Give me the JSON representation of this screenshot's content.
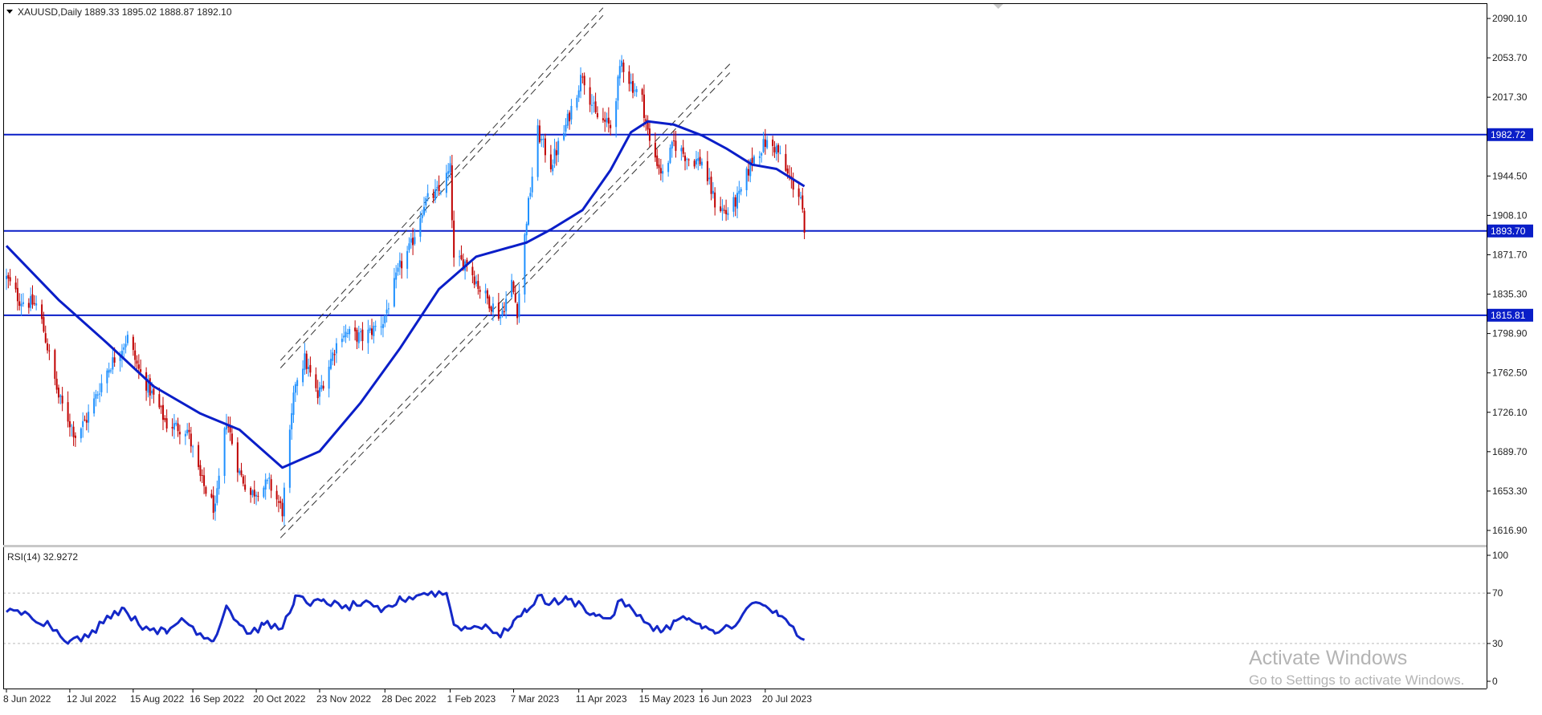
{
  "header": {
    "symbol": "XAUUSD,Daily",
    "ohlc": "1889.33 1895.02 1888.87 1892.10"
  },
  "rsi_header": "RSI(14) 32.9272",
  "watermark": {
    "title": "Activate Windows",
    "subtitle": "Go to Settings to activate Windows."
  },
  "colors": {
    "bull": "#1e90ff",
    "bear": "#c00000",
    "ma": "#0a1ec8",
    "level": "#0a1ec8",
    "rsi": "#1428c8",
    "label_bg": "#0a1ec8",
    "label_text": "#ffffff",
    "grid_dash": "#bbbbbb",
    "axis": "#000000"
  },
  "chart_data": [
    {
      "type": "candlestick",
      "title": "XAUUSD,Daily",
      "xlabel": "",
      "ylabel": "",
      "ylim": [
        1605,
        2100
      ],
      "x_range": [
        "2022-06-08",
        "2023-08-10"
      ],
      "x_ticks": [
        {
          "date": "2022-06-08",
          "label": "8 Jun 2022"
        },
        {
          "date": "2022-07-12",
          "label": "12 Jul 2022"
        },
        {
          "date": "2022-08-15",
          "label": "15 Aug 2022"
        },
        {
          "date": "2022-09-16",
          "label": "16 Sep 2022"
        },
        {
          "date": "2022-10-20",
          "label": "20 Oct 2022"
        },
        {
          "date": "2022-11-23",
          "label": "23 Nov 2022"
        },
        {
          "date": "2022-12-28",
          "label": "28 Dec 2022"
        },
        {
          "date": "2023-02-01",
          "label": "1 Feb 2023"
        },
        {
          "date": "2023-03-07",
          "label": "7 Mar 2023"
        },
        {
          "date": "2023-04-11",
          "label": "11 Apr 2023"
        },
        {
          "date": "2023-05-15",
          "label": "15 May 2023"
        },
        {
          "date": "2023-06-16",
          "label": "16 Jun 2023"
        },
        {
          "date": "2023-07-20",
          "label": "20 Jul 2023"
        }
      ],
      "y_ticks": [
        "2090.10",
        "2053.70",
        "2017.30",
        "1944.50",
        "1908.10",
        "1871.70",
        "1835.30",
        "1798.90",
        "1762.50",
        "1726.10",
        "1689.70",
        "1653.30",
        "1616.90"
      ],
      "horizontal_levels": [
        {
          "value": 1982.72,
          "label": "1982.72"
        },
        {
          "value": 1893.7,
          "label": "1893.70"
        },
        {
          "value": 1815.81,
          "label": "1815.81"
        }
      ],
      "close_path": [
        [
          "2022-06-08",
          1850
        ],
        [
          "2022-06-15",
          1830
        ],
        [
          "2022-06-25",
          1825
        ],
        [
          "2022-07-06",
          1740
        ],
        [
          "2022-07-15",
          1705
        ],
        [
          "2022-07-21",
          1720
        ],
        [
          "2022-08-01",
          1765
        ],
        [
          "2022-08-12",
          1795
        ],
        [
          "2022-08-18",
          1765
        ],
        [
          "2022-08-26",
          1740
        ],
        [
          "2022-09-02",
          1715
        ],
        [
          "2022-09-13",
          1710
        ],
        [
          "2022-09-20",
          1665
        ],
        [
          "2022-09-28",
          1635
        ],
        [
          "2022-10-04",
          1720
        ],
        [
          "2022-10-11",
          1670
        ],
        [
          "2022-10-17",
          1650
        ],
        [
          "2022-10-21",
          1655
        ],
        [
          "2022-10-27",
          1660
        ],
        [
          "2022-11-03",
          1635
        ],
        [
          "2022-11-10",
          1755
        ],
        [
          "2022-11-15",
          1775
        ],
        [
          "2022-11-22",
          1740
        ],
        [
          "2022-12-01",
          1785
        ],
        [
          "2022-12-05",
          1800
        ],
        [
          "2022-12-16",
          1795
        ],
        [
          "2022-12-27",
          1810
        ],
        [
          "2023-01-05",
          1860
        ],
        [
          "2023-01-11",
          1880
        ],
        [
          "2023-01-18",
          1920
        ],
        [
          "2023-01-26",
          1930
        ],
        [
          "2023-02-01",
          1950
        ],
        [
          "2023-02-03",
          1865
        ],
        [
          "2023-02-10",
          1865
        ],
        [
          "2023-02-17",
          1840
        ],
        [
          "2023-02-28",
          1815
        ],
        [
          "2023-03-06",
          1845
        ],
        [
          "2023-03-09",
          1820
        ],
        [
          "2023-03-14",
          1905
        ],
        [
          "2023-03-20",
          1985
        ],
        [
          "2023-03-27",
          1955
        ],
        [
          "2023-04-03",
          1985
        ],
        [
          "2023-04-13",
          2040
        ],
        [
          "2023-04-20",
          2000
        ],
        [
          "2023-04-28",
          1990
        ],
        [
          "2023-05-04",
          2050
        ],
        [
          "2023-05-09",
          2030
        ],
        [
          "2023-05-15",
          2015
        ],
        [
          "2023-05-19",
          1975
        ],
        [
          "2023-05-26",
          1945
        ],
        [
          "2023-06-01",
          1975
        ],
        [
          "2023-06-09",
          1960
        ],
        [
          "2023-06-16",
          1958
        ],
        [
          "2023-06-23",
          1920
        ],
        [
          "2023-06-29",
          1910
        ],
        [
          "2023-07-06",
          1925
        ],
        [
          "2023-07-13",
          1960
        ],
        [
          "2023-07-20",
          1975
        ],
        [
          "2023-07-26",
          1970
        ],
        [
          "2023-08-01",
          1945
        ],
        [
          "2023-08-08",
          1925
        ],
        [
          "2023-08-10",
          1892.1
        ]
      ],
      "moving_average": {
        "name": "",
        "points": [
          [
            "2022-06-08",
            1880
          ],
          [
            "2022-07-06",
            1830
          ],
          [
            "2022-08-01",
            1790
          ],
          [
            "2022-08-26",
            1750
          ],
          [
            "2022-09-20",
            1725
          ],
          [
            "2022-10-11",
            1710
          ],
          [
            "2022-11-03",
            1675
          ],
          [
            "2022-11-23",
            1690
          ],
          [
            "2022-12-15",
            1735
          ],
          [
            "2023-01-05",
            1785
          ],
          [
            "2023-01-26",
            1840
          ],
          [
            "2023-02-15",
            1870
          ],
          [
            "2023-03-14",
            1883
          ],
          [
            "2023-03-27",
            1895
          ],
          [
            "2023-04-13",
            1913
          ],
          [
            "2023-04-28",
            1950
          ],
          [
            "2023-05-09",
            1985
          ],
          [
            "2023-05-18",
            1995
          ],
          [
            "2023-06-01",
            1992
          ],
          [
            "2023-06-16",
            1982
          ],
          [
            "2023-06-29",
            1970
          ],
          [
            "2023-07-13",
            1955
          ],
          [
            "2023-07-26",
            1951
          ],
          [
            "2023-08-10",
            1935
          ]
        ]
      },
      "trend_channels": [
        {
          "name": "",
          "points": [
            [
              "2022-11-02",
              1617
            ],
            [
              "2023-07-01",
              2048
            ]
          ]
        },
        {
          "name": "",
          "points": [
            [
              "2022-11-02",
              1610
            ],
            [
              "2023-07-01",
              2040
            ]
          ]
        },
        {
          "name": "",
          "points": [
            [
              "2022-11-02",
              1774
            ],
            [
              "2023-04-24",
              2100
            ]
          ]
        },
        {
          "name": "",
          "points": [
            [
              "2022-11-02",
              1767
            ],
            [
              "2023-04-24",
              2093
            ]
          ]
        }
      ]
    },
    {
      "type": "line",
      "title": "RSI(14) 32.9272",
      "xlabel": "",
      "ylabel": "",
      "ylim": [
        0,
        100
      ],
      "y_ticks": [
        "100",
        "70",
        "30",
        "0"
      ],
      "reference_levels": [
        70,
        30
      ],
      "series": [
        {
          "name": "",
          "values": [
            [
              "2022-06-08",
              55
            ],
            [
              "2022-06-20",
              53
            ],
            [
              "2022-07-01",
              45
            ],
            [
              "2022-07-12",
              32
            ],
            [
              "2022-07-22",
              35
            ],
            [
              "2022-08-01",
              52
            ],
            [
              "2022-08-10",
              58
            ],
            [
              "2022-08-18",
              45
            ],
            [
              "2022-08-26",
              42
            ],
            [
              "2022-09-02",
              38
            ],
            [
              "2022-09-10",
              50
            ],
            [
              "2022-09-20",
              38
            ],
            [
              "2022-09-27",
              32
            ],
            [
              "2022-10-04",
              60
            ],
            [
              "2022-10-11",
              45
            ],
            [
              "2022-10-17",
              38
            ],
            [
              "2022-10-24",
              45
            ],
            [
              "2022-11-03",
              42
            ],
            [
              "2022-11-10",
              68
            ],
            [
              "2022-11-18",
              60
            ],
            [
              "2022-11-25",
              65
            ],
            [
              "2022-12-05",
              58
            ],
            [
              "2022-12-16",
              62
            ],
            [
              "2022-12-26",
              55
            ],
            [
              "2023-01-06",
              65
            ],
            [
              "2023-01-18",
              70
            ],
            [
              "2023-01-30",
              70
            ],
            [
              "2023-02-03",
              45
            ],
            [
              "2023-02-10",
              42
            ],
            [
              "2023-02-20",
              45
            ],
            [
              "2023-02-28",
              35
            ],
            [
              "2023-03-07",
              48
            ],
            [
              "2023-03-14",
              55
            ],
            [
              "2023-03-20",
              68
            ],
            [
              "2023-03-27",
              62
            ],
            [
              "2023-04-05",
              65
            ],
            [
              "2023-04-13",
              60
            ],
            [
              "2023-04-20",
              52
            ],
            [
              "2023-04-28",
              50
            ],
            [
              "2023-05-04",
              65
            ],
            [
              "2023-05-12",
              52
            ],
            [
              "2023-05-19",
              45
            ],
            [
              "2023-05-26",
              40
            ],
            [
              "2023-06-02",
              48
            ],
            [
              "2023-06-09",
              50
            ],
            [
              "2023-06-16",
              42
            ],
            [
              "2023-06-23",
              38
            ],
            [
              "2023-06-30",
              44
            ],
            [
              "2023-07-06",
              48
            ],
            [
              "2023-07-13",
              62
            ],
            [
              "2023-07-20",
              60
            ],
            [
              "2023-07-27",
              52
            ],
            [
              "2023-08-02",
              45
            ],
            [
              "2023-08-08",
              34
            ],
            [
              "2023-08-10",
              32.93
            ]
          ]
        }
      ]
    }
  ]
}
